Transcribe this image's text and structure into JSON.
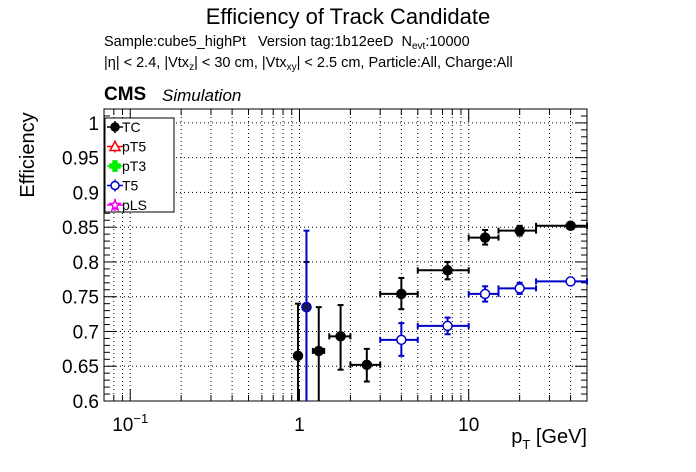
{
  "header": {
    "title": "Efficiency of Track Candidate",
    "subtitle_sample": "Sample:cube5_highPt",
    "subtitle_version": "Version tag:1b12eeD",
    "subtitle_nevt_label_main": "N",
    "subtitle_nevt_label_sub": "evt",
    "subtitle_nevt_value": ":10000",
    "cuts_eta": "|η| < 2.4, |Vtx",
    "cuts_z_sub": "z",
    "cuts_mid": "| < 30 cm, |Vtx",
    "cuts_xy_sub": "xy",
    "cuts_tail": "| < 2.5 cm, Particle:All, Charge:All",
    "experiment": "CMS",
    "experiment_tag": "Simulation"
  },
  "chart_data": {
    "type": "scatter",
    "x_scale": "log",
    "xlim": [
      0.07,
      50
    ],
    "ylim": [
      0.6,
      1.02
    ],
    "ylabel": "Efficiency",
    "xlabel_main": "p",
    "xlabel_sub": "T",
    "xlabel_unit": "[GeV]",
    "grid": true,
    "legend_placement": "top-left",
    "x_ticks": [
      {
        "value": 0.1,
        "label_base": "10",
        "label_exp": "−1"
      },
      {
        "value": 1,
        "label_base": "1",
        "label_exp": ""
      },
      {
        "value": 10,
        "label_base": "10",
        "label_exp": ""
      }
    ],
    "y_ticks": [
      {
        "value": 0.6,
        "label": "0.6"
      },
      {
        "value": 0.65,
        "label": "0.65"
      },
      {
        "value": 0.7,
        "label": "0.7"
      },
      {
        "value": 0.75,
        "label": "0.75"
      },
      {
        "value": 0.8,
        "label": "0.8"
      },
      {
        "value": 0.85,
        "label": "0.85"
      },
      {
        "value": 0.9,
        "label": "0.9"
      },
      {
        "value": 0.95,
        "label": "0.95"
      },
      {
        "value": 1,
        "label": "1"
      }
    ],
    "legend": [
      {
        "name": "TC",
        "color": "#000000",
        "marker": "filled-circle"
      },
      {
        "name": "pT5",
        "color": "#ff0000",
        "marker": "open-triangle"
      },
      {
        "name": "pT3",
        "color": "#00ee00",
        "marker": "filled-cross"
      },
      {
        "name": "T5",
        "color": "#0000cc",
        "marker": "open-circle"
      },
      {
        "name": "pLS",
        "color": "#ee00ee",
        "marker": "open-star"
      }
    ],
    "series": [
      {
        "name": "TC",
        "color": "#000000",
        "marker": "filled",
        "points": [
          {
            "x": 0.98,
            "xlo": 0.96,
            "xhi": 1.0,
            "y": 0.665,
            "ylo": 0.6,
            "yhi": 0.74
          },
          {
            "x": 1.1,
            "xlo": 1.08,
            "xhi": 1.12,
            "y": 0.735,
            "ylo": 0.6,
            "yhi": 0.8
          },
          {
            "x": 1.3,
            "xlo": 1.2,
            "xhi": 1.4,
            "y": 0.672,
            "ylo": 0.6,
            "yhi": 0.735
          },
          {
            "x": 1.75,
            "xlo": 1.5,
            "xhi": 2.0,
            "y": 0.693,
            "ylo": 0.645,
            "yhi": 0.738
          },
          {
            "x": 2.5,
            "xlo": 2.0,
            "xhi": 3.0,
            "y": 0.652,
            "ylo": 0.628,
            "yhi": 0.675
          },
          {
            "x": 4.0,
            "xlo": 3.0,
            "xhi": 5.0,
            "y": 0.754,
            "ylo": 0.732,
            "yhi": 0.777
          },
          {
            "x": 7.5,
            "xlo": 5.0,
            "xhi": 10.0,
            "y": 0.788,
            "ylo": 0.775,
            "yhi": 0.8
          },
          {
            "x": 12.5,
            "xlo": 10.0,
            "xhi": 15.0,
            "y": 0.835,
            "ylo": 0.825,
            "yhi": 0.846
          },
          {
            "x": 20.0,
            "xlo": 15.0,
            "xhi": 25.0,
            "y": 0.845,
            "ylo": 0.838,
            "yhi": 0.852
          },
          {
            "x": 40.0,
            "xlo": 25.0,
            "xhi": 50.0,
            "y": 0.852,
            "ylo": 0.848,
            "yhi": 0.856
          }
        ]
      },
      {
        "name": "T5",
        "color": "#0000cc",
        "marker": "open",
        "points": [
          {
            "x": 1.1,
            "xlo": 1.08,
            "xhi": 1.12,
            "y": 0.735,
            "ylo": 0.6,
            "yhi": 0.845,
            "filled": true
          },
          {
            "x": 4.0,
            "xlo": 3.0,
            "xhi": 5.0,
            "y": 0.688,
            "ylo": 0.665,
            "yhi": 0.712
          },
          {
            "x": 7.5,
            "xlo": 5.0,
            "xhi": 10.0,
            "y": 0.708,
            "ylo": 0.696,
            "yhi": 0.72
          },
          {
            "x": 12.5,
            "xlo": 10.0,
            "xhi": 15.0,
            "y": 0.754,
            "ylo": 0.743,
            "yhi": 0.765
          },
          {
            "x": 20.0,
            "xlo": 15.0,
            "xhi": 25.0,
            "y": 0.762,
            "ylo": 0.754,
            "yhi": 0.77
          },
          {
            "x": 40.0,
            "xlo": 25.0,
            "xhi": 50.0,
            "y": 0.772,
            "ylo": 0.768,
            "yhi": 0.775
          }
        ]
      }
    ]
  }
}
